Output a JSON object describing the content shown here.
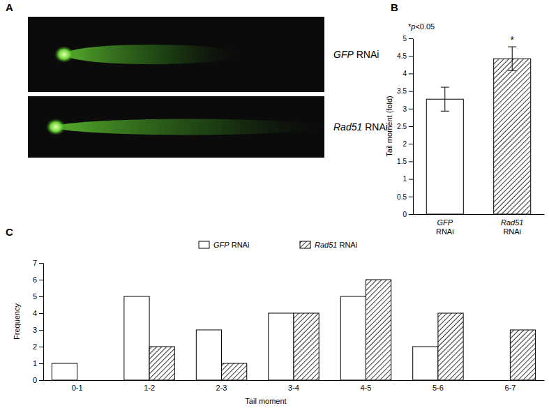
{
  "panel_a": {
    "panel": "A",
    "images": [
      {
        "caption": "GFP RNAi"
      },
      {
        "caption": "Rad51 RNAi"
      }
    ]
  },
  "chart_data": [
    {
      "panel": "B",
      "type": "bar",
      "annotation": "*p<0.05",
      "categories": [
        "GFP RNAi",
        "Rad51 RNAi"
      ],
      "values": [
        3.27,
        4.42
      ],
      "errors": [
        0.34,
        0.34
      ],
      "significance": [
        null,
        "*"
      ],
      "colors": [
        "#ffffff",
        "#ffffff"
      ],
      "y_label": "Tail moment (fold)",
      "ylim": [
        0,
        5
      ],
      "yticks": [
        0,
        0.5,
        1,
        1.5,
        2,
        2.5,
        3,
        3.5,
        4,
        4.5,
        5
      ],
      "grid": false
    },
    {
      "panel": "C",
      "type": "bar",
      "categories": [
        "0-1",
        "1-2",
        "2-3",
        "3-4",
        "4-5",
        "5-6",
        "6-7"
      ],
      "series": [
        {
          "name": "GFP RNAi",
          "color": "#ffffff",
          "values": [
            1,
            5,
            3,
            4,
            5,
            2,
            0
          ]
        },
        {
          "name": "Rad51 RNAi",
          "color": "#ffffff",
          "values": [
            0,
            2,
            1,
            4,
            6,
            4,
            3
          ]
        }
      ],
      "x_label": "Tail moment",
      "y_label": "Frequency",
      "ylim": [
        0,
        7
      ],
      "yticks": [
        0,
        1,
        2,
        3,
        4,
        5,
        6,
        7
      ],
      "legend": "top",
      "grid": false
    }
  ]
}
